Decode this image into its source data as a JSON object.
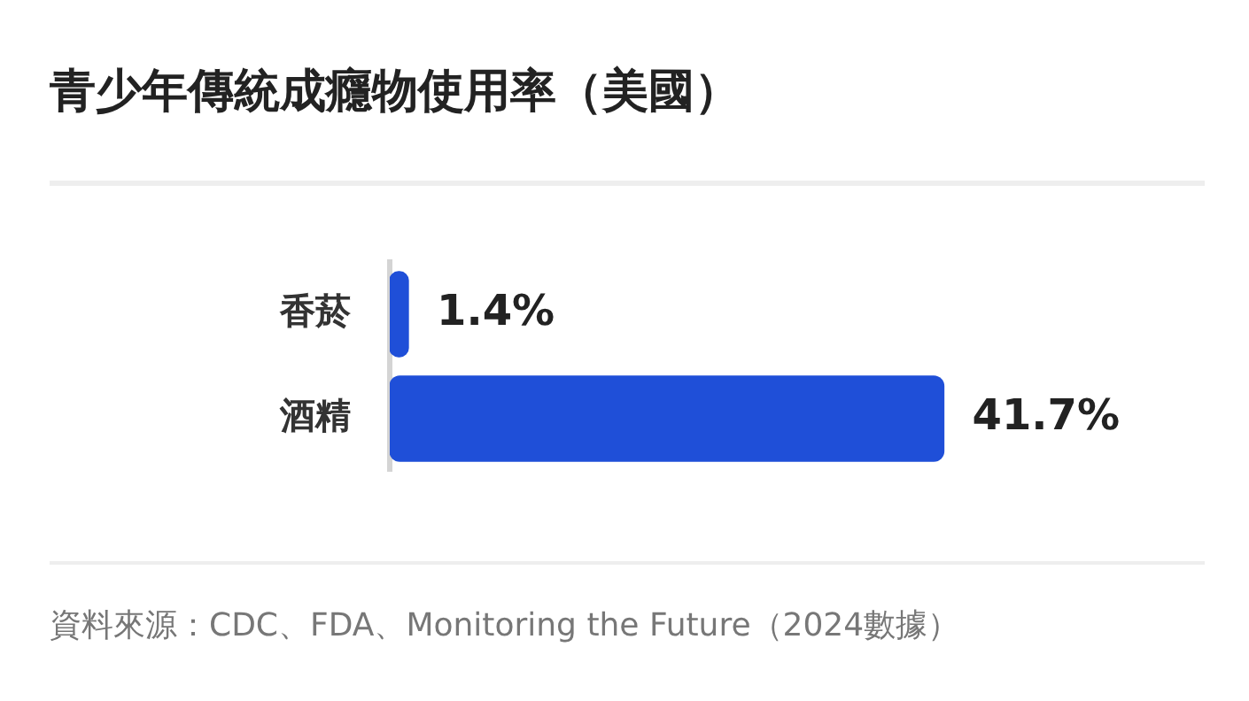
{
  "chart_data": {
    "type": "bar",
    "orientation": "horizontal",
    "title": "青少年傳統成癮物使用率（美國）",
    "categories": [
      "香菸",
      "酒精"
    ],
    "values": [
      1.4,
      41.7
    ],
    "value_labels": [
      "1.4%",
      "41.7%"
    ],
    "color": "#1f4fd8",
    "legend": false,
    "tick_labels": "y",
    "annotations": [
      "資料來源：CDC、FDA、Monitoring the Future（2024數據）"
    ]
  }
}
